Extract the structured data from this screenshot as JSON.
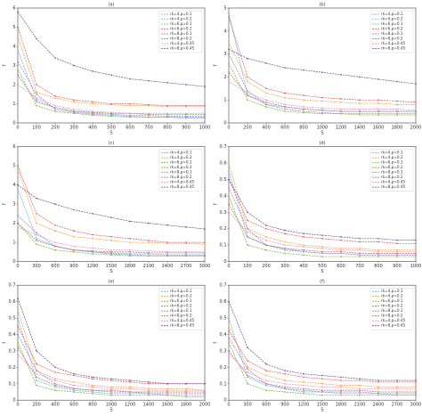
{
  "chart_data": [
    {
      "type": "line",
      "title": "(a)",
      "x_label": "S",
      "y_label": "f",
      "x": [
        0,
        100,
        200,
        300,
        400,
        500,
        600,
        700,
        800,
        900,
        1000
      ],
      "xlim": [
        0,
        1000
      ],
      "xticks": [
        0,
        100,
        200,
        300,
        400,
        500,
        600,
        700,
        800,
        900,
        1000
      ],
      "ylim": [
        0,
        6
      ],
      "yticks": [
        0,
        1,
        2,
        3,
        4,
        5,
        6
      ],
      "legend": "upper right",
      "series": [
        {
          "name": "rk=4,p=0.1",
          "color": "#5dade2",
          "values": [
            3.8,
            1.2,
            0.8,
            0.6,
            0.5,
            0.45,
            0.4,
            0.4,
            0.35,
            0.35,
            0.35
          ]
        },
        {
          "name": "rk=4,p=0.2",
          "color": "#f0a040",
          "values": [
            4.5,
            1.6,
            1.3,
            1.1,
            1.0,
            0.95,
            0.9,
            0.9,
            0.85,
            0.85,
            0.85
          ]
        },
        {
          "name": "rk=6,p=0.1",
          "color": "#7cb342",
          "values": [
            2.8,
            0.9,
            0.6,
            0.5,
            0.4,
            0.35,
            0.3,
            0.3,
            0.3,
            0.3,
            0.3
          ]
        },
        {
          "name": "rk=6,p=0.2",
          "color": "#e05a5a",
          "values": [
            5.0,
            2.0,
            1.4,
            1.2,
            1.1,
            1.0,
            1.0,
            0.95,
            0.9,
            0.9,
            0.9
          ]
        },
        {
          "name": "rk=8,p=0.1",
          "color": "#9b7bc4",
          "values": [
            3.2,
            1.5,
            0.7,
            0.55,
            0.45,
            0.4,
            0.35,
            0.3,
            0.3,
            0.25,
            0.25
          ]
        },
        {
          "name": "rk=8,p=0.2",
          "color": "#a0785a",
          "values": [
            2.5,
            1.1,
            0.8,
            0.6,
            0.55,
            0.5,
            0.5,
            0.45,
            0.45,
            0.45,
            0.45
          ]
        },
        {
          "name": "rk=4,p=0.45",
          "color": "#e88bc4",
          "values": [
            2.0,
            1.3,
            0.9,
            0.7,
            0.6,
            0.55,
            0.5,
            0.5,
            0.5,
            0.5,
            0.5
          ]
        },
        {
          "name": "rk=8,p=0.45",
          "color": "#6a4c93",
          "values": [
            5.8,
            4.4,
            3.4,
            3.0,
            2.7,
            2.5,
            2.3,
            2.2,
            2.1,
            2.0,
            1.9
          ]
        }
      ]
    },
    {
      "type": "line",
      "title": "(b)",
      "x_label": "S",
      "y_label": "f",
      "x": [
        0,
        200,
        400,
        600,
        800,
        1000,
        1200,
        1400,
        1600,
        1800,
        2000
      ],
      "xlim": [
        0,
        2000
      ],
      "xticks": [
        0,
        200,
        400,
        600,
        800,
        1000,
        1200,
        1400,
        1600,
        1800,
        2000
      ],
      "ylim": [
        0,
        5
      ],
      "yticks": [
        0,
        1,
        2,
        3,
        4,
        5
      ],
      "legend": "upper right",
      "series": [
        {
          "name": "rk=4,p=0.1",
          "color": "#5dade2",
          "values": [
            4.8,
            1.2,
            0.8,
            0.7,
            0.6,
            0.55,
            0.5,
            0.5,
            0.5,
            0.5,
            0.5
          ]
        },
        {
          "name": "rk=4,p=0.2",
          "color": "#f0a040",
          "values": [
            3.5,
            1.8,
            1.3,
            1.1,
            1.0,
            0.95,
            0.9,
            0.85,
            0.85,
            0.8,
            0.8
          ]
        },
        {
          "name": "rk=6,p=0.1",
          "color": "#7cb342",
          "values": [
            2.6,
            1.0,
            0.7,
            0.5,
            0.45,
            0.4,
            0.4,
            0.35,
            0.35,
            0.35,
            0.35
          ]
        },
        {
          "name": "rk=6,p=0.2",
          "color": "#e05a5a",
          "values": [
            4.6,
            2.0,
            1.5,
            1.3,
            1.2,
            1.1,
            1.05,
            1.0,
            1.0,
            0.95,
            0.9
          ]
        },
        {
          "name": "rk=8,p=0.1",
          "color": "#9b7bc4",
          "values": [
            3.0,
            1.4,
            0.8,
            0.6,
            0.5,
            0.45,
            0.4,
            0.4,
            0.4,
            0.4,
            0.4
          ]
        },
        {
          "name": "rk=8,p=0.2",
          "color": "#a0785a",
          "values": [
            2.2,
            1.2,
            0.9,
            0.7,
            0.6,
            0.55,
            0.5,
            0.5,
            0.5,
            0.5,
            0.5
          ]
        },
        {
          "name": "rk=4,p=0.45",
          "color": "#e88bc4",
          "values": [
            1.8,
            1.3,
            1.0,
            0.8,
            0.7,
            0.65,
            0.6,
            0.6,
            0.6,
            0.6,
            0.55
          ]
        },
        {
          "name": "rk=8,p=0.45",
          "color": "#6a4c93",
          "values": [
            3.2,
            2.8,
            2.6,
            2.4,
            2.3,
            2.2,
            2.1,
            2.0,
            1.9,
            1.8,
            1.7
          ]
        }
      ]
    },
    {
      "type": "line",
      "title": "(c)",
      "x_label": "S",
      "y_label": "f",
      "x": [
        0,
        300,
        600,
        900,
        1200,
        1500,
        1800,
        2100,
        2400,
        2700,
        3000
      ],
      "xlim": [
        0,
        3000
      ],
      "xticks": [
        0,
        300,
        600,
        900,
        1200,
        1500,
        1800,
        2100,
        2400,
        2700,
        3000
      ],
      "ylim": [
        0,
        6
      ],
      "yticks": [
        0,
        1,
        2,
        3,
        4,
        5,
        6
      ],
      "legend": "upper right",
      "series": [
        {
          "name": "rk=4,p=0.1",
          "color": "#5dade2",
          "values": [
            3.8,
            1.2,
            0.8,
            0.6,
            0.5,
            0.45,
            0.4,
            0.4,
            0.35,
            0.35,
            0.35
          ]
        },
        {
          "name": "rk=4,p=0.2",
          "color": "#f0a040",
          "values": [
            4.8,
            2.0,
            1.6,
            1.3,
            1.2,
            1.1,
            1.0,
            1.0,
            0.95,
            0.95,
            0.9
          ]
        },
        {
          "name": "rk=6,p=0.1",
          "color": "#7cb342",
          "values": [
            2.0,
            0.9,
            0.6,
            0.5,
            0.4,
            0.35,
            0.3,
            0.3,
            0.3,
            0.3,
            0.3
          ]
        },
        {
          "name": "rk=6,p=0.2",
          "color": "#e05a5a",
          "values": [
            5.0,
            2.5,
            1.9,
            1.6,
            1.4,
            1.3,
            1.2,
            1.1,
            1.0,
            1.0,
            1.0
          ]
        },
        {
          "name": "rk=8,p=0.1",
          "color": "#9b7bc4",
          "values": [
            2.4,
            1.5,
            0.8,
            0.6,
            0.5,
            0.4,
            0.35,
            0.3,
            0.3,
            0.3,
            0.3
          ]
        },
        {
          "name": "rk=8,p=0.2",
          "color": "#a0785a",
          "values": [
            2.0,
            1.1,
            0.8,
            0.6,
            0.55,
            0.5,
            0.5,
            0.45,
            0.45,
            0.45,
            0.45
          ]
        },
        {
          "name": "rk=4,p=0.45",
          "color": "#e88bc4",
          "values": [
            1.8,
            1.4,
            1.0,
            0.8,
            0.7,
            0.6,
            0.6,
            0.55,
            0.5,
            0.5,
            0.5
          ]
        },
        {
          "name": "rk=8,p=0.45",
          "color": "#6a4c93",
          "values": [
            4.0,
            3.3,
            3.0,
            2.7,
            2.5,
            2.3,
            2.1,
            2.0,
            1.9,
            1.8,
            1.7
          ]
        }
      ]
    },
    {
      "type": "line",
      "title": "(d)",
      "x_label": "S",
      "y_label": "f",
      "x": [
        0,
        100,
        200,
        300,
        400,
        500,
        600,
        700,
        800,
        900,
        1000
      ],
      "xlim": [
        0,
        1000
      ],
      "xticks": [
        0,
        100,
        200,
        300,
        400,
        500,
        600,
        700,
        800,
        900,
        1000
      ],
      "ylim": [
        0,
        0.7
      ],
      "yticks": [
        0,
        0.1,
        0.2,
        0.3,
        0.4,
        0.5,
        0.6,
        0.7
      ],
      "legend": "upper right",
      "series": [
        {
          "name": "rk=4,p=0.1",
          "color": "#5dade2",
          "values": [
            0.55,
            0.15,
            0.1,
            0.08,
            0.06,
            0.05,
            0.05,
            0.04,
            0.04,
            0.04,
            0.04
          ]
        },
        {
          "name": "rk=4,p=0.2",
          "color": "#f0a040",
          "values": [
            0.6,
            0.2,
            0.15,
            0.12,
            0.1,
            0.09,
            0.08,
            0.08,
            0.07,
            0.07,
            0.07
          ]
        },
        {
          "name": "rk=6,p=0.1",
          "color": "#7cb342",
          "values": [
            0.4,
            0.1,
            0.07,
            0.05,
            0.04,
            0.03,
            0.03,
            0.03,
            0.03,
            0.03,
            0.03
          ]
        },
        {
          "name": "rk=6,p=0.2",
          "color": "#e05a5a",
          "values": [
            0.5,
            0.25,
            0.2,
            0.17,
            0.15,
            0.14,
            0.13,
            0.12,
            0.12,
            0.11,
            0.11
          ]
        },
        {
          "name": "rk=8,p=0.1",
          "color": "#9b7bc4",
          "values": [
            0.45,
            0.2,
            0.1,
            0.07,
            0.06,
            0.05,
            0.05,
            0.04,
            0.04,
            0.04,
            0.04
          ]
        },
        {
          "name": "rk=8,p=0.2",
          "color": "#a0785a",
          "values": [
            0.35,
            0.15,
            0.1,
            0.08,
            0.07,
            0.06,
            0.06,
            0.05,
            0.05,
            0.05,
            0.05
          ]
        },
        {
          "name": "rk=4,p=0.45",
          "color": "#e88bc4",
          "values": [
            0.3,
            0.18,
            0.13,
            0.1,
            0.09,
            0.08,
            0.07,
            0.07,
            0.06,
            0.06,
            0.06
          ]
        },
        {
          "name": "rk=8,p=0.45",
          "color": "#6a4c93",
          "values": [
            0.5,
            0.3,
            0.22,
            0.19,
            0.17,
            0.16,
            0.15,
            0.14,
            0.14,
            0.13,
            0.13
          ]
        }
      ]
    },
    {
      "type": "line",
      "title": "(e)",
      "x_label": "S",
      "y_label": "f",
      "x": [
        0,
        200,
        400,
        600,
        800,
        1000,
        1200,
        1400,
        1600,
        1800,
        2000
      ],
      "xlim": [
        0,
        2000
      ],
      "xticks": [
        0,
        200,
        400,
        600,
        800,
        1000,
        1200,
        1400,
        1600,
        1800,
        2000
      ],
      "ylim": [
        0,
        0.7
      ],
      "yticks": [
        0,
        0.1,
        0.2,
        0.3,
        0.4,
        0.5,
        0.6,
        0.7
      ],
      "legend": "upper right",
      "series": [
        {
          "name": "rk=4,p=0.1",
          "color": "#5dade2",
          "values": [
            0.5,
            0.12,
            0.08,
            0.06,
            0.05,
            0.04,
            0.04,
            0.04,
            0.03,
            0.03,
            0.03
          ]
        },
        {
          "name": "rk=4,p=0.2",
          "color": "#f0a040",
          "values": [
            0.55,
            0.18,
            0.13,
            0.11,
            0.09,
            0.08,
            0.08,
            0.07,
            0.07,
            0.07,
            0.06
          ]
        },
        {
          "name": "rk=6,p=0.1",
          "color": "#7cb342",
          "values": [
            0.35,
            0.09,
            0.06,
            0.05,
            0.04,
            0.03,
            0.03,
            0.03,
            0.03,
            0.02,
            0.02
          ]
        },
        {
          "name": "rk=6,p=0.2",
          "color": "#e05a5a",
          "values": [
            0.45,
            0.22,
            0.17,
            0.15,
            0.13,
            0.12,
            0.11,
            0.1,
            0.1,
            0.1,
            0.1
          ]
        },
        {
          "name": "rk=8,p=0.1",
          "color": "#9b7bc4",
          "values": [
            0.4,
            0.18,
            0.1,
            0.07,
            0.06,
            0.05,
            0.05,
            0.04,
            0.04,
            0.04,
            0.04
          ]
        },
        {
          "name": "rk=8,p=0.2",
          "color": "#a0785a",
          "values": [
            0.32,
            0.14,
            0.09,
            0.07,
            0.06,
            0.06,
            0.05,
            0.05,
            0.05,
            0.05,
            0.05
          ]
        },
        {
          "name": "rk=4,p=0.45",
          "color": "#e88bc4",
          "values": [
            0.28,
            0.16,
            0.12,
            0.09,
            0.08,
            0.07,
            0.07,
            0.06,
            0.06,
            0.06,
            0.06
          ]
        },
        {
          "name": "rk=8,p=0.45",
          "color": "#6a4c93",
          "values": [
            0.62,
            0.3,
            0.2,
            0.16,
            0.14,
            0.13,
            0.12,
            0.11,
            0.1,
            0.1,
            0.1
          ]
        }
      ]
    },
    {
      "type": "line",
      "title": "(f)",
      "x_label": "S",
      "y_label": "f",
      "x": [
        0,
        300,
        600,
        900,
        1200,
        1500,
        1800,
        2100,
        2400,
        2700,
        3000
      ],
      "xlim": [
        0,
        3000
      ],
      "xticks": [
        0,
        300,
        600,
        900,
        1200,
        1500,
        1800,
        2100,
        2400,
        2700,
        3000
      ],
      "ylim": [
        0,
        0.7
      ],
      "yticks": [
        0,
        0.1,
        0.2,
        0.3,
        0.4,
        0.5,
        0.6,
        0.7
      ],
      "legend": "upper right",
      "series": [
        {
          "name": "rk=4,p=0.1",
          "color": "#5dade2",
          "values": [
            0.5,
            0.14,
            0.09,
            0.07,
            0.05,
            0.05,
            0.04,
            0.04,
            0.04,
            0.03,
            0.03
          ]
        },
        {
          "name": "rk=4,p=0.2",
          "color": "#f0a040",
          "values": [
            0.45,
            0.2,
            0.15,
            0.12,
            0.11,
            0.1,
            0.09,
            0.09,
            0.08,
            0.08,
            0.08
          ]
        },
        {
          "name": "rk=6,p=0.1",
          "color": "#7cb342",
          "values": [
            0.35,
            0.1,
            0.06,
            0.05,
            0.04,
            0.03,
            0.03,
            0.03,
            0.03,
            0.03,
            0.03
          ]
        },
        {
          "name": "rk=6,p=0.2",
          "color": "#e05a5a",
          "values": [
            0.42,
            0.24,
            0.18,
            0.16,
            0.14,
            0.13,
            0.12,
            0.12,
            0.11,
            0.11,
            0.11
          ]
        },
        {
          "name": "rk=8,p=0.1",
          "color": "#9b7bc4",
          "values": [
            0.38,
            0.19,
            0.1,
            0.07,
            0.06,
            0.05,
            0.05,
            0.05,
            0.04,
            0.04,
            0.04
          ]
        },
        {
          "name": "rk=8,p=0.2",
          "color": "#a0785a",
          "values": [
            0.3,
            0.15,
            0.1,
            0.08,
            0.07,
            0.06,
            0.06,
            0.06,
            0.05,
            0.05,
            0.05
          ]
        },
        {
          "name": "rk=4,p=0.45",
          "color": "#e88bc4",
          "values": [
            0.28,
            0.17,
            0.12,
            0.1,
            0.09,
            0.08,
            0.08,
            0.07,
            0.07,
            0.07,
            0.07
          ]
        },
        {
          "name": "rk=8,p=0.45",
          "color": "#6a4c93",
          "values": [
            0.6,
            0.32,
            0.22,
            0.18,
            0.16,
            0.15,
            0.14,
            0.13,
            0.12,
            0.12,
            0.12
          ]
        }
      ]
    }
  ]
}
